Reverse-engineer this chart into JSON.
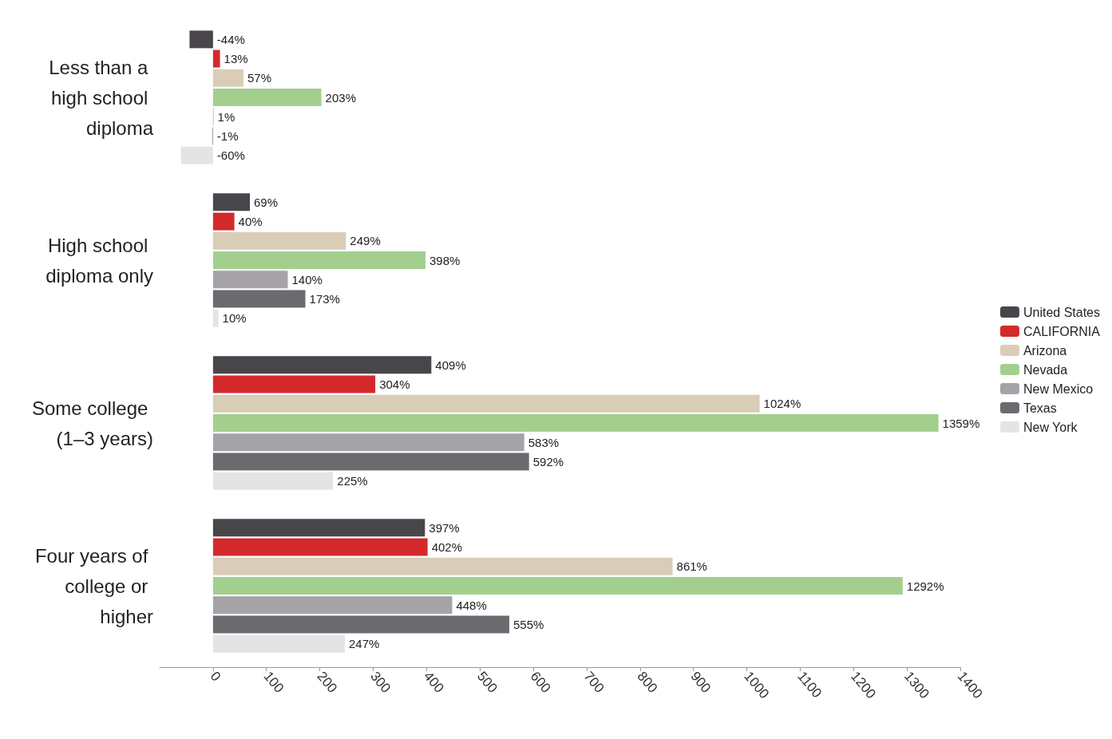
{
  "chart_data": {
    "type": "bar",
    "orientation": "horizontal",
    "categories": [
      "Less than a high school diploma",
      "High school diploma only",
      "Some college (1–3 years)",
      "Four years of college or higher"
    ],
    "series": [
      {
        "name": "United States",
        "color": "#48464b",
        "values": [
          -44,
          69,
          409,
          397
        ],
        "value_labels": [
          "-44%",
          "69%",
          "409%",
          "397%"
        ]
      },
      {
        "name": "CALIFORNIA",
        "color": "#d42a2c",
        "values": [
          13,
          40,
          304,
          402
        ],
        "value_labels": [
          "13%",
          "40%",
          "304%",
          "402%"
        ]
      },
      {
        "name": "Arizona",
        "color": "#d9cdb8",
        "values": [
          57,
          249,
          1024,
          861
        ],
        "value_labels": [
          "57%",
          "249%",
          "1024%",
          "861%"
        ]
      },
      {
        "name": "Nevada",
        "color": "#a3cf8e",
        "values": [
          203,
          398,
          1359,
          1292
        ],
        "value_labels": [
          "203%",
          "398%",
          "1359%",
          "1292%"
        ]
      },
      {
        "name": "New Mexico",
        "color": "#a5a3a8",
        "values": [
          1,
          140,
          583,
          448
        ],
        "value_labels": [
          "1%",
          "140%",
          "583%",
          "448%"
        ]
      },
      {
        "name": "Texas",
        "color": "#6b6a6f",
        "values": [
          -1,
          173,
          592,
          555
        ],
        "value_labels": [
          "-1%",
          "173%",
          "592%",
          "555%"
        ]
      },
      {
        "name": "New York",
        "color": "#e4e4e4",
        "values": [
          -60,
          10,
          225,
          247
        ],
        "value_labels": [
          "-60%",
          "10%",
          "225%",
          "247%"
        ]
      }
    ],
    "xlim": [
      -100,
      1400
    ],
    "xticks": [
      0,
      100,
      200,
      300,
      400,
      500,
      600,
      700,
      800,
      900,
      1000,
      1100,
      1200,
      1300,
      1400
    ],
    "grid": false,
    "legend": "right"
  }
}
